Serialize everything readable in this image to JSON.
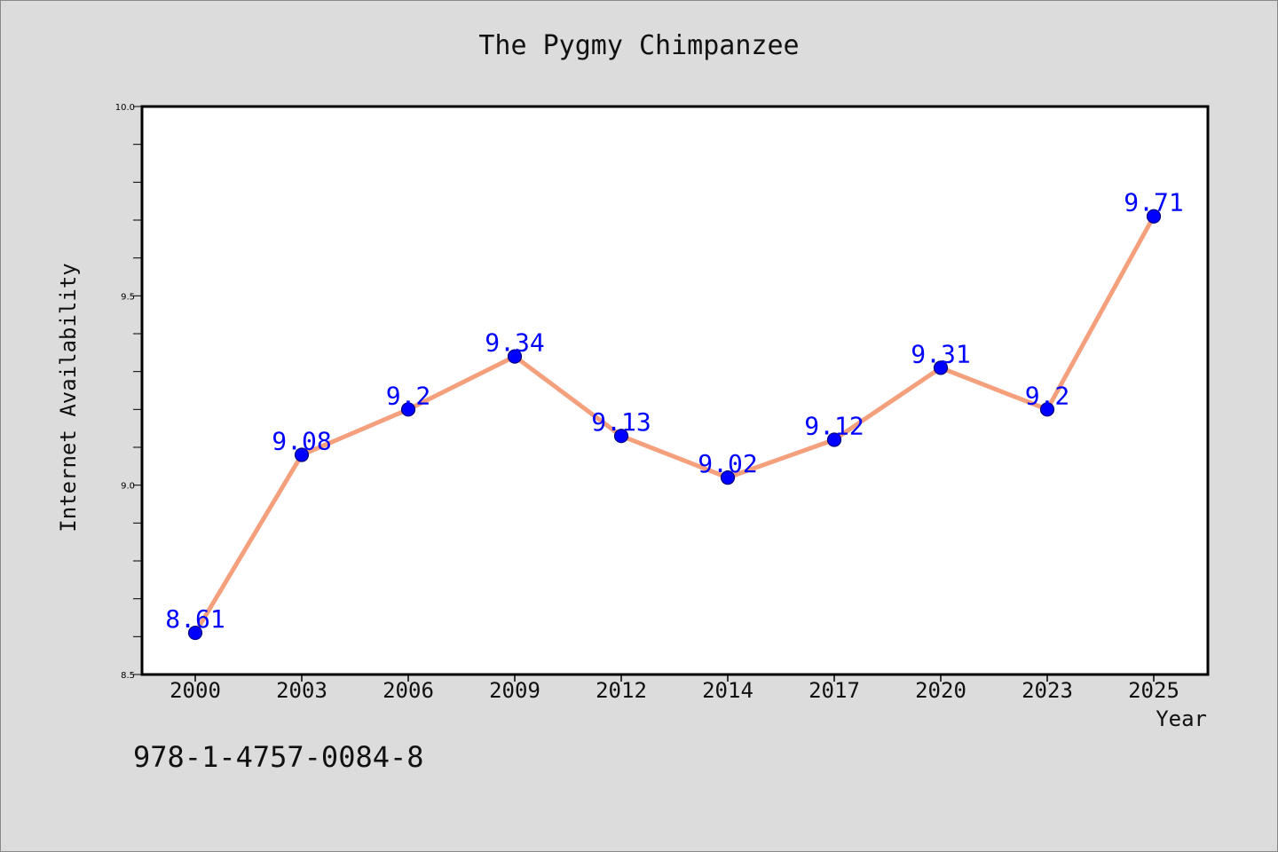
{
  "chart_data": {
    "type": "line",
    "title": "The Pygmy Chimpanzee",
    "xlabel": "Year",
    "ylabel": "Internet Availability",
    "categories": [
      "2000",
      "2003",
      "2006",
      "2009",
      "2012",
      "2014",
      "2017",
      "2020",
      "2023",
      "2025"
    ],
    "series": [
      {
        "values": [
          8.61,
          9.08,
          9.2,
          9.34,
          9.13,
          9.02,
          9.12,
          9.31,
          9.2,
          9.71
        ],
        "data_labels": [
          "8.61",
          "9.08",
          "9.2",
          "9.34",
          "9.13",
          "9.02",
          "9.12",
          "9.31",
          "9.2",
          "9.71"
        ]
      }
    ],
    "ylim": [
      8.5,
      10.0
    ],
    "y_ticks": [
      "8.5",
      "9.0",
      "9.5",
      "10.0"
    ],
    "y_minor_step": 0.1,
    "grid": false,
    "legend": "none",
    "colors": {
      "line": "#f4a07c",
      "marker": "#0000ff",
      "marker_edge": "#000080",
      "data_label": "#0000ff",
      "plot_bg": "#ffffff",
      "figure_bg": "#dcdcdc"
    }
  },
  "footer": {
    "isbn": "978-1-4757-0084-8"
  }
}
